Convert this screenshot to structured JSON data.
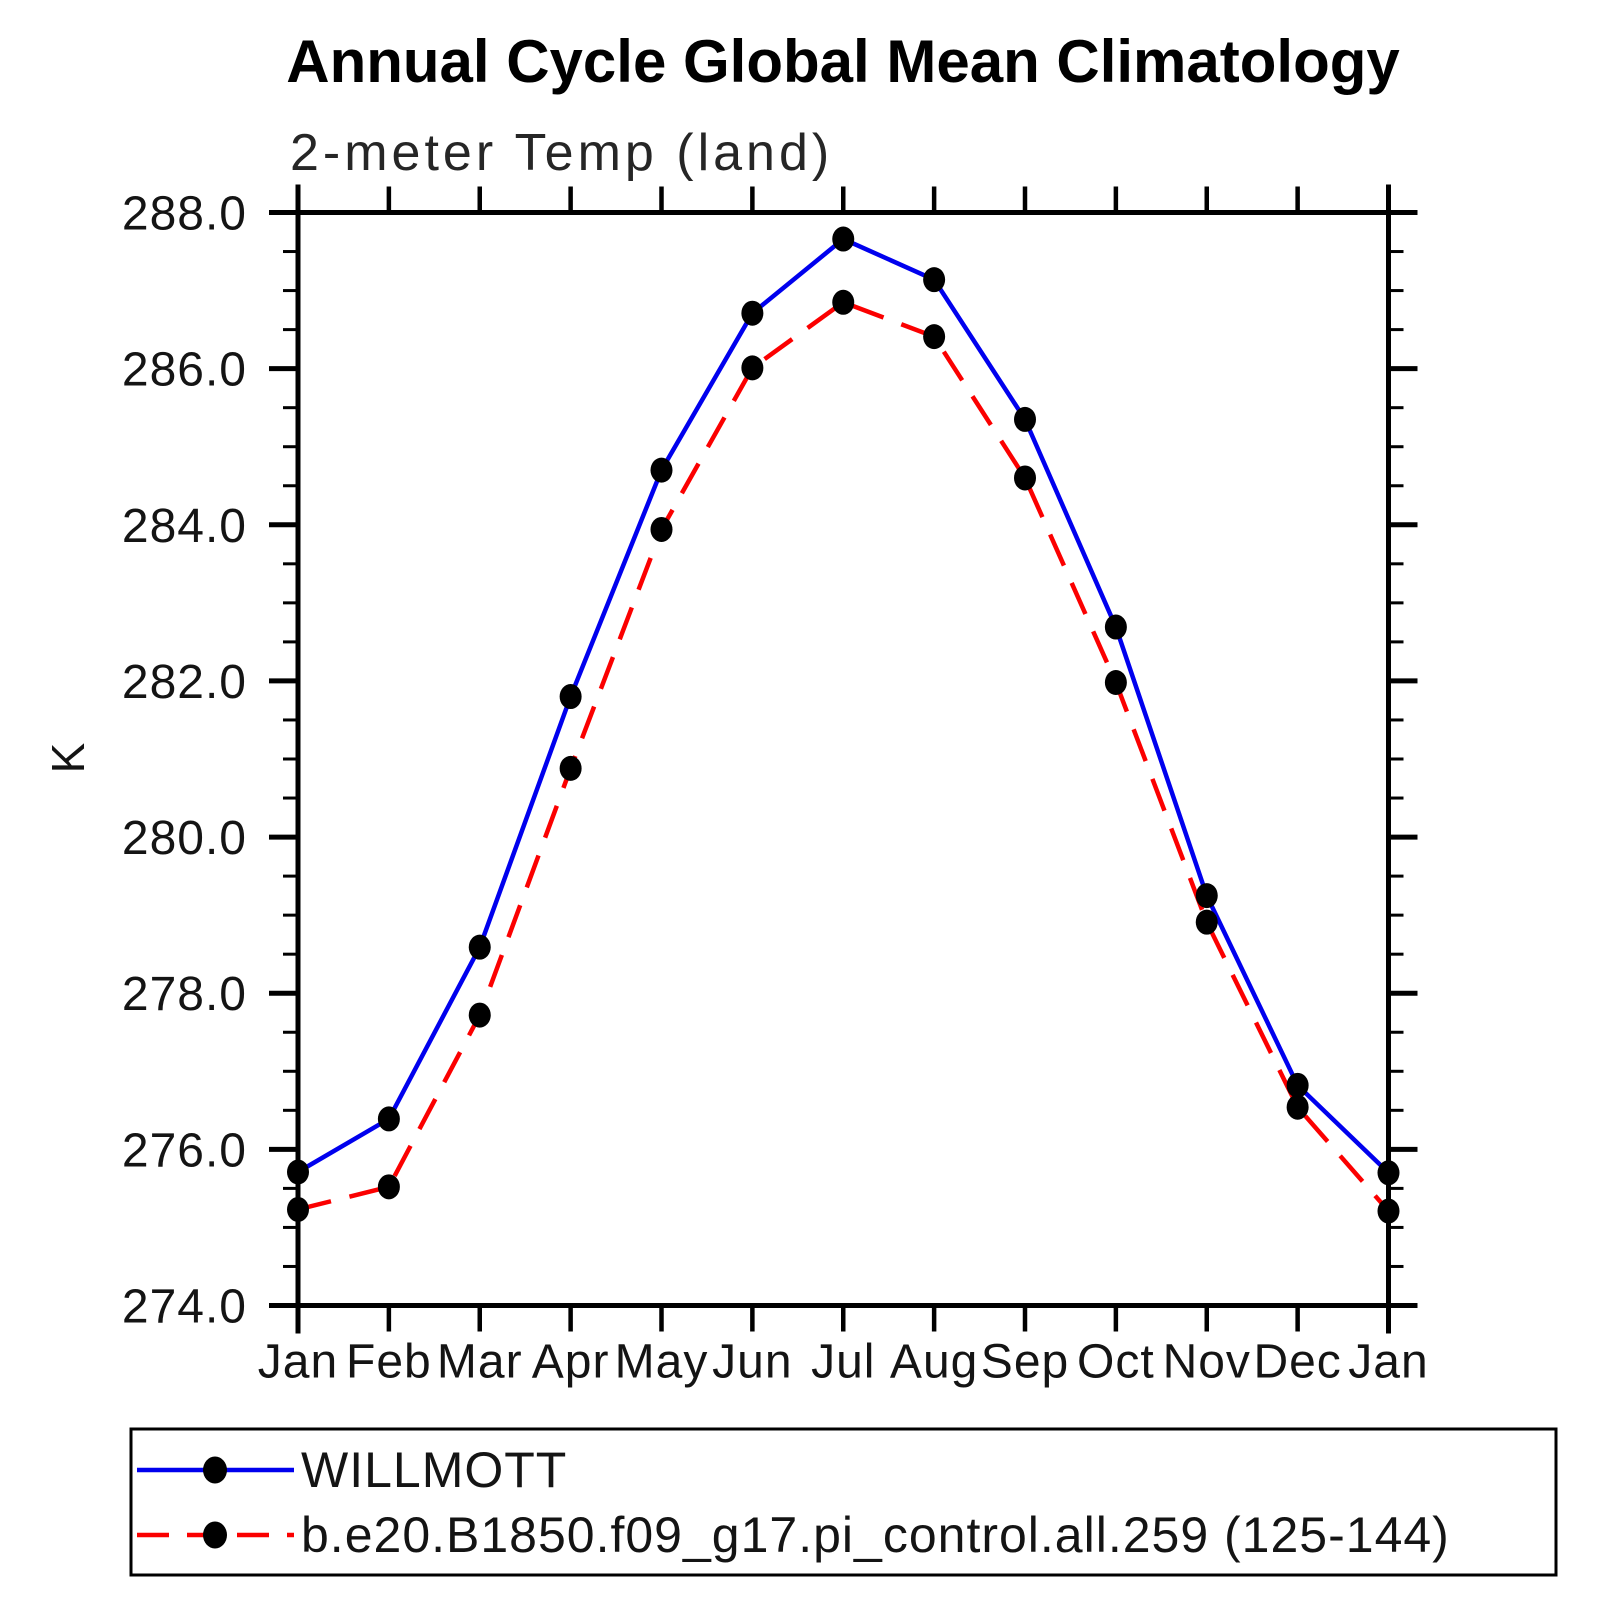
{
  "header": {
    "title": "Annual Cycle Global Mean Climatology",
    "subtitle": "2-meter Temp (land)"
  },
  "axes": {
    "y_unit": "K",
    "y_min": 274.0,
    "y_max": 288.0,
    "y_major_step": 2.0,
    "y_minor_step": 0.5,
    "y_tick_labels": [
      "288.0",
      "286.0",
      "284.0",
      "282.0",
      "280.0",
      "278.0",
      "276.0",
      "274.0"
    ],
    "x_tick_labels": [
      "Jan",
      "Feb",
      "Mar",
      "Apr",
      "May",
      "Jun",
      "Jul",
      "Aug",
      "Sep",
      "Oct",
      "Nov",
      "Dec",
      "Jan"
    ]
  },
  "legend": {
    "entries": [
      {
        "label": "WILLMOTT",
        "color": "#0000EE",
        "line_style": "solid",
        "marker": "black-dot"
      },
      {
        "label": "b.e20.B1850.f09_g17.pi_control.all.259 (125-144)",
        "color": "#FB0000",
        "line_style": "dashed",
        "marker": "black-dot"
      }
    ]
  },
  "colors": {
    "willmott_line": "#0000EE",
    "model_line": "#FB0000",
    "marker": "#000000",
    "axis": "#000000",
    "background": "#FFFFFF"
  },
  "chart_data": {
    "type": "line",
    "title": "Annual Cycle Global Mean Climatology",
    "subtitle": "2-meter Temp (land)",
    "xlabel": "",
    "ylabel": "K",
    "ylim": [
      274.0,
      288.0
    ],
    "y_major_tick_step": 2.0,
    "y_minor_tick_step": 0.5,
    "grid": false,
    "legend_position": "bottom",
    "categories": [
      "Jan",
      "Feb",
      "Mar",
      "Apr",
      "May",
      "Jun",
      "Jul",
      "Aug",
      "Sep",
      "Oct",
      "Nov",
      "Dec",
      "Jan"
    ],
    "series": [
      {
        "name": "WILLMOTT",
        "color": "#0000EE",
        "line_style": "solid",
        "marker": "circle",
        "marker_color": "#000000",
        "values": [
          275.71,
          276.39,
          278.59,
          281.8,
          284.7,
          286.71,
          287.66,
          287.14,
          285.35,
          282.69,
          279.25,
          276.82,
          275.7
        ]
      },
      {
        "name": "b.e20.B1850.f09_g17.pi_control.all.259 (125-144)",
        "color": "#FB0000",
        "line_style": "dashed",
        "marker": "circle",
        "marker_color": "#000000",
        "values": [
          275.23,
          275.52,
          277.72,
          280.88,
          283.94,
          286.01,
          286.85,
          286.41,
          284.6,
          281.98,
          278.91,
          276.54,
          275.21
        ]
      }
    ]
  }
}
